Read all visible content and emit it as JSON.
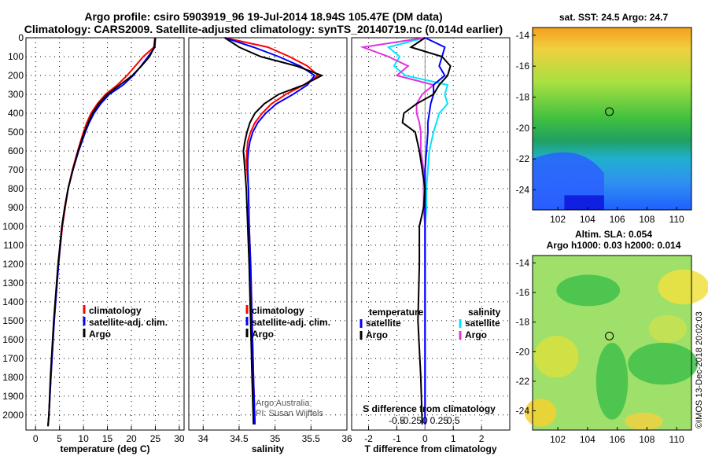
{
  "chart_data": {
    "type": "line",
    "title": "Argo profile: csiro 5903919_96 19-Jul-2014 18.94S 105.47E (DM data)",
    "subtitle": "Climatology: CARS2009. Satellite-adjusted climatology: synTS_20140719.nc (0.014d earlier)",
    "colors": {
      "climatology": "#ff0000",
      "satellite": "#0000ff",
      "argo": "#000000",
      "temp_satellite": "#0000ff",
      "sal_satellite": "#00e5ff",
      "sal_argo": "#e030e0"
    },
    "depth_axis": {
      "ylim": [
        0,
        2080
      ],
      "ticks": [
        0,
        100,
        200,
        300,
        400,
        500,
        600,
        700,
        800,
        900,
        1000,
        1100,
        1200,
        1300,
        1400,
        1500,
        1600,
        1700,
        1800,
        1900,
        2000
      ]
    },
    "temperature": {
      "xlabel": "temperature (deg C)",
      "xlim": [
        -2,
        31
      ],
      "xticks": [
        0,
        5,
        10,
        15,
        20,
        25,
        30
      ],
      "legend": [
        "climatology",
        "satellite-adj. clim.",
        "Argo"
      ],
      "depth": [
        0,
        50,
        100,
        150,
        200,
        250,
        300,
        350,
        400,
        450,
        500,
        600,
        700,
        800,
        900,
        1000,
        1200,
        1500,
        1800,
        2000,
        2060
      ],
      "climatology": [
        24.9,
        24.7,
        22.5,
        20.8,
        19.1,
        17.1,
        14.6,
        12.9,
        11.6,
        10.7,
        10.0,
        8.8,
        7.7,
        6.8,
        6.2,
        5.6,
        4.8,
        3.9,
        3.2,
        2.8,
        2.6
      ],
      "satellite": [
        25.0,
        24.9,
        23.5,
        22.0,
        20.4,
        18.3,
        15.4,
        13.6,
        12.2,
        11.2,
        10.4,
        9.0,
        7.8,
        6.8,
        6.1,
        5.5,
        4.8,
        3.9,
        3.2,
        2.8,
        2.6
      ],
      "argo": [
        25.0,
        24.8,
        23.8,
        22.1,
        20.2,
        17.6,
        15.0,
        13.2,
        11.9,
        11.0,
        10.2,
        8.9,
        7.8,
        6.8,
        6.1,
        5.5,
        4.7,
        3.8,
        3.1,
        2.8,
        2.6
      ]
    },
    "salinity": {
      "xlabel": "salinity",
      "xlim": [
        33.8,
        36.0
      ],
      "xticks": [
        34,
        34.5,
        35,
        35.5,
        36
      ],
      "xticklabels": [
        "34",
        "34.5",
        "35",
        "35.5",
        "36"
      ],
      "legend": [
        "climatology",
        "satellite-adj. clim.",
        "Argo"
      ],
      "depth": [
        0,
        50,
        100,
        150,
        200,
        250,
        300,
        350,
        400,
        450,
        500,
        550,
        600,
        650,
        700,
        800,
        1000,
        1200,
        1500,
        1800,
        2050
      ],
      "climatology": [
        34.3,
        34.9,
        35.2,
        35.45,
        35.6,
        35.4,
        35.15,
        34.95,
        34.82,
        34.72,
        34.66,
        34.62,
        34.61,
        34.6,
        34.61,
        34.63,
        34.64,
        34.66,
        34.68,
        34.7,
        34.72
      ],
      "satellite": [
        34.3,
        34.7,
        35.05,
        35.35,
        35.55,
        35.45,
        35.25,
        35.02,
        34.87,
        34.76,
        34.69,
        34.65,
        34.63,
        34.62,
        34.62,
        34.63,
        34.64,
        34.66,
        34.68,
        34.7,
        34.72
      ],
      "argo": [
        34.3,
        34.5,
        34.8,
        35.3,
        35.65,
        35.4,
        35.05,
        34.85,
        34.72,
        34.65,
        34.61,
        34.58,
        34.56,
        34.57,
        34.58,
        34.6,
        34.62,
        34.64,
        34.66,
        34.68,
        34.7
      ],
      "credit": [
        "Argo Australia",
        "PI: Susan Wijffels"
      ]
    },
    "difference": {
      "xlabel": "T difference from climatology",
      "xlim": [
        -2.6,
        3.0
      ],
      "xticks": [
        -2,
        -1,
        0,
        1,
        2
      ],
      "xticklabels": [
        "-2",
        "-1",
        "0",
        "1",
        "2"
      ],
      "s_xlabel": "S difference from climatology",
      "s_xticks": [
        -0.5,
        -0.25,
        0,
        0.25,
        0.5
      ],
      "s_xticklabels": [
        "-0.5",
        "-0.25",
        "0",
        "0.25",
        "0.5"
      ],
      "legend_left_title": "temperature",
      "legend_right_title": "salinity",
      "legend_items": [
        "satellite",
        "Argo"
      ],
      "depth": [
        0,
        50,
        100,
        150,
        200,
        250,
        300,
        350,
        400,
        450,
        500,
        600,
        700,
        800,
        900,
        1000,
        1200,
        1500,
        1800,
        2050
      ],
      "t_satellite": [
        0,
        0.7,
        0.6,
        0.5,
        0.7,
        0.3,
        0.3,
        0.2,
        0.15,
        0.1,
        0.1,
        0.05,
        0,
        0,
        0,
        0,
        0,
        0,
        0,
        0
      ],
      "t_argo": [
        0,
        -0.5,
        0.6,
        0.9,
        0.8,
        0.5,
        0.3,
        -0.3,
        -0.75,
        -0.8,
        -0.35,
        -0.2,
        -0.1,
        0,
        -0.05,
        -0.2,
        -0.2,
        -0.25,
        -0.15,
        -0.1
      ],
      "s_satellite": [
        0,
        -1.3,
        -0.9,
        -1.1,
        -0.7,
        0.8,
        0.7,
        0.8,
        0.5,
        0.4,
        0.3,
        0.15,
        0.1,
        0.05,
        0.05,
        0,
        0,
        0,
        0,
        0
      ],
      "s_argo": [
        0,
        -2.2,
        -1.3,
        -0.6,
        -1.0,
        0.3,
        -0.1,
        -0.3,
        -0.3,
        -0.2,
        -0.15,
        -0.15,
        -0.05,
        -0.05,
        -0.05,
        0,
        0,
        0,
        0,
        0
      ]
    },
    "maps": {
      "sst_title": "sat. SST: 24.5 Argo: 24.7",
      "sla_title1": "Altim. SLA: 0.054",
      "sla_title2": "Argo h1000: 0.03 h2000: 0.014",
      "lon_ticks": [
        102,
        104,
        106,
        108,
        110
      ],
      "lat_ticks": [
        -14,
        -16,
        -18,
        -20,
        -22,
        -24
      ],
      "lon_range": [
        100.3,
        111.0
      ],
      "lat_range": [
        -13.5,
        -25.3
      ],
      "marker": {
        "lon": 105.47,
        "lat": -18.94
      }
    },
    "footer": "©IMOS 13-Dec-2018 20:02:03"
  }
}
